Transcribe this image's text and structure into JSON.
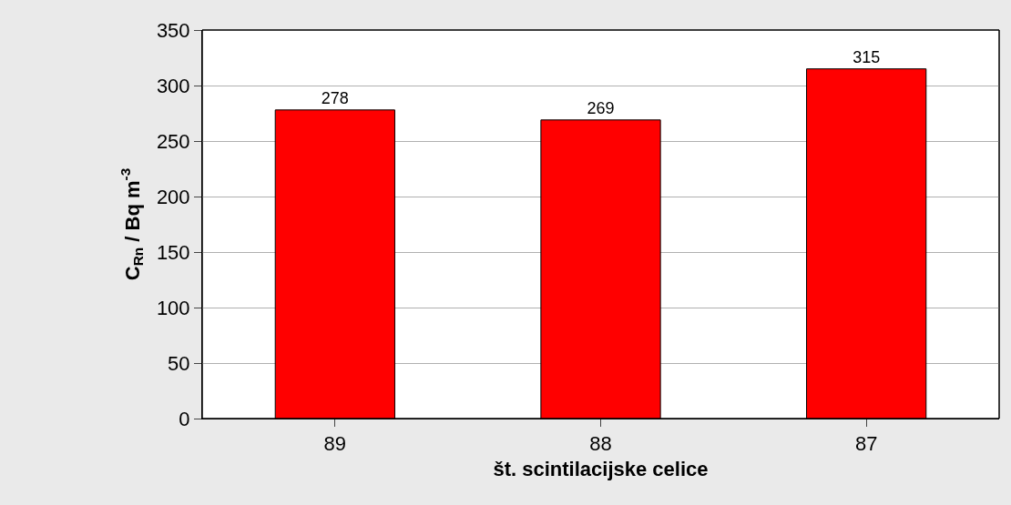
{
  "chart_data": {
    "type": "bar",
    "xlabel": "št. scintilacijske celice",
    "ylabel": "C$_{Rn}$ / Bq m$^{-3}$",
    "categories": [
      "89",
      "88",
      "87"
    ],
    "series": [
      {
        "color": "#ff0000",
        "values": [
          278,
          269,
          315
        ]
      }
    ],
    "ylim": [
      0,
      350
    ],
    "yticks": [
      0,
      50,
      100,
      150,
      200,
      250,
      300,
      350
    ],
    "grid": "y",
    "data_labels": true,
    "legend": false
  }
}
